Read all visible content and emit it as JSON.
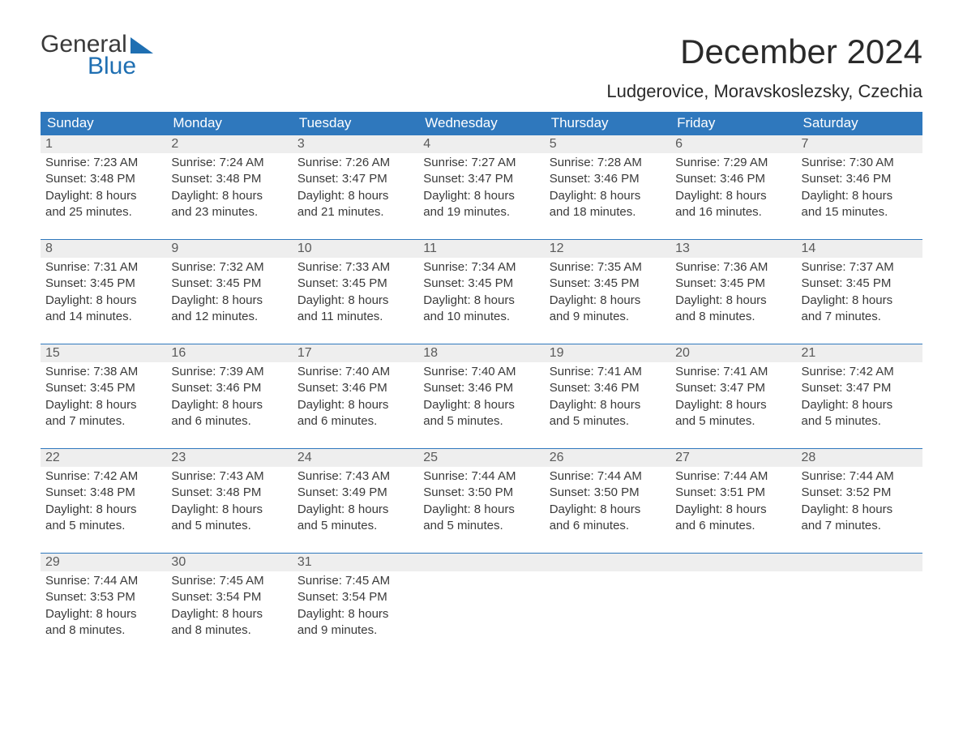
{
  "logo": {
    "word1": "General",
    "word2": "Blue"
  },
  "title": "December 2024",
  "location": "Ludgerovice, Moravskoslezsky, Czechia",
  "day_headers": [
    "Sunday",
    "Monday",
    "Tuesday",
    "Wednesday",
    "Thursday",
    "Friday",
    "Saturday"
  ],
  "colors": {
    "header_bg": "#2f78bd",
    "header_text": "#ffffff",
    "accent": "#1f6fb2",
    "daynum_bg": "#eeeeee",
    "text": "#3a3a3a",
    "body_bg": "#ffffff"
  },
  "weeks": [
    [
      {
        "n": "1",
        "sr": "Sunrise: 7:23 AM",
        "ss": "Sunset: 3:48 PM",
        "d1": "Daylight: 8 hours",
        "d2": "and 25 minutes."
      },
      {
        "n": "2",
        "sr": "Sunrise: 7:24 AM",
        "ss": "Sunset: 3:48 PM",
        "d1": "Daylight: 8 hours",
        "d2": "and 23 minutes."
      },
      {
        "n": "3",
        "sr": "Sunrise: 7:26 AM",
        "ss": "Sunset: 3:47 PM",
        "d1": "Daylight: 8 hours",
        "d2": "and 21 minutes."
      },
      {
        "n": "4",
        "sr": "Sunrise: 7:27 AM",
        "ss": "Sunset: 3:47 PM",
        "d1": "Daylight: 8 hours",
        "d2": "and 19 minutes."
      },
      {
        "n": "5",
        "sr": "Sunrise: 7:28 AM",
        "ss": "Sunset: 3:46 PM",
        "d1": "Daylight: 8 hours",
        "d2": "and 18 minutes."
      },
      {
        "n": "6",
        "sr": "Sunrise: 7:29 AM",
        "ss": "Sunset: 3:46 PM",
        "d1": "Daylight: 8 hours",
        "d2": "and 16 minutes."
      },
      {
        "n": "7",
        "sr": "Sunrise: 7:30 AM",
        "ss": "Sunset: 3:46 PM",
        "d1": "Daylight: 8 hours",
        "d2": "and 15 minutes."
      }
    ],
    [
      {
        "n": "8",
        "sr": "Sunrise: 7:31 AM",
        "ss": "Sunset: 3:45 PM",
        "d1": "Daylight: 8 hours",
        "d2": "and 14 minutes."
      },
      {
        "n": "9",
        "sr": "Sunrise: 7:32 AM",
        "ss": "Sunset: 3:45 PM",
        "d1": "Daylight: 8 hours",
        "d2": "and 12 minutes."
      },
      {
        "n": "10",
        "sr": "Sunrise: 7:33 AM",
        "ss": "Sunset: 3:45 PM",
        "d1": "Daylight: 8 hours",
        "d2": "and 11 minutes."
      },
      {
        "n": "11",
        "sr": "Sunrise: 7:34 AM",
        "ss": "Sunset: 3:45 PM",
        "d1": "Daylight: 8 hours",
        "d2": "and 10 minutes."
      },
      {
        "n": "12",
        "sr": "Sunrise: 7:35 AM",
        "ss": "Sunset: 3:45 PM",
        "d1": "Daylight: 8 hours",
        "d2": "and 9 minutes."
      },
      {
        "n": "13",
        "sr": "Sunrise: 7:36 AM",
        "ss": "Sunset: 3:45 PM",
        "d1": "Daylight: 8 hours",
        "d2": "and 8 minutes."
      },
      {
        "n": "14",
        "sr": "Sunrise: 7:37 AM",
        "ss": "Sunset: 3:45 PM",
        "d1": "Daylight: 8 hours",
        "d2": "and 7 minutes."
      }
    ],
    [
      {
        "n": "15",
        "sr": "Sunrise: 7:38 AM",
        "ss": "Sunset: 3:45 PM",
        "d1": "Daylight: 8 hours",
        "d2": "and 7 minutes."
      },
      {
        "n": "16",
        "sr": "Sunrise: 7:39 AM",
        "ss": "Sunset: 3:46 PM",
        "d1": "Daylight: 8 hours",
        "d2": "and 6 minutes."
      },
      {
        "n": "17",
        "sr": "Sunrise: 7:40 AM",
        "ss": "Sunset: 3:46 PM",
        "d1": "Daylight: 8 hours",
        "d2": "and 6 minutes."
      },
      {
        "n": "18",
        "sr": "Sunrise: 7:40 AM",
        "ss": "Sunset: 3:46 PM",
        "d1": "Daylight: 8 hours",
        "d2": "and 5 minutes."
      },
      {
        "n": "19",
        "sr": "Sunrise: 7:41 AM",
        "ss": "Sunset: 3:46 PM",
        "d1": "Daylight: 8 hours",
        "d2": "and 5 minutes."
      },
      {
        "n": "20",
        "sr": "Sunrise: 7:41 AM",
        "ss": "Sunset: 3:47 PM",
        "d1": "Daylight: 8 hours",
        "d2": "and 5 minutes."
      },
      {
        "n": "21",
        "sr": "Sunrise: 7:42 AM",
        "ss": "Sunset: 3:47 PM",
        "d1": "Daylight: 8 hours",
        "d2": "and 5 minutes."
      }
    ],
    [
      {
        "n": "22",
        "sr": "Sunrise: 7:42 AM",
        "ss": "Sunset: 3:48 PM",
        "d1": "Daylight: 8 hours",
        "d2": "and 5 minutes."
      },
      {
        "n": "23",
        "sr": "Sunrise: 7:43 AM",
        "ss": "Sunset: 3:48 PM",
        "d1": "Daylight: 8 hours",
        "d2": "and 5 minutes."
      },
      {
        "n": "24",
        "sr": "Sunrise: 7:43 AM",
        "ss": "Sunset: 3:49 PM",
        "d1": "Daylight: 8 hours",
        "d2": "and 5 minutes."
      },
      {
        "n": "25",
        "sr": "Sunrise: 7:44 AM",
        "ss": "Sunset: 3:50 PM",
        "d1": "Daylight: 8 hours",
        "d2": "and 5 minutes."
      },
      {
        "n": "26",
        "sr": "Sunrise: 7:44 AM",
        "ss": "Sunset: 3:50 PM",
        "d1": "Daylight: 8 hours",
        "d2": "and 6 minutes."
      },
      {
        "n": "27",
        "sr": "Sunrise: 7:44 AM",
        "ss": "Sunset: 3:51 PM",
        "d1": "Daylight: 8 hours",
        "d2": "and 6 minutes."
      },
      {
        "n": "28",
        "sr": "Sunrise: 7:44 AM",
        "ss": "Sunset: 3:52 PM",
        "d1": "Daylight: 8 hours",
        "d2": "and 7 minutes."
      }
    ],
    [
      {
        "n": "29",
        "sr": "Sunrise: 7:44 AM",
        "ss": "Sunset: 3:53 PM",
        "d1": "Daylight: 8 hours",
        "d2": "and 8 minutes."
      },
      {
        "n": "30",
        "sr": "Sunrise: 7:45 AM",
        "ss": "Sunset: 3:54 PM",
        "d1": "Daylight: 8 hours",
        "d2": "and 8 minutes."
      },
      {
        "n": "31",
        "sr": "Sunrise: 7:45 AM",
        "ss": "Sunset: 3:54 PM",
        "d1": "Daylight: 8 hours",
        "d2": "and 9 minutes."
      },
      {
        "empty": true
      },
      {
        "empty": true
      },
      {
        "empty": true
      },
      {
        "empty": true
      }
    ]
  ]
}
